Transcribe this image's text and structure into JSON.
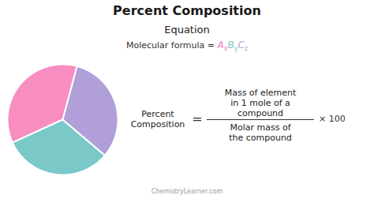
{
  "chart_data": {
    "type": "pie",
    "title": "Percent Composition",
    "values": [
      36,
      32,
      32
    ],
    "colors": [
      "#f78dc0",
      "#7bc8c8",
      "#b09fd8"
    ],
    "annotations": [
      {
        "text": "Equation"
      },
      {
        "text": "Molecular formula = "
      },
      {
        "text": "A",
        "color": "#f47cbe"
      },
      {
        "text": "x",
        "color": "#f47cbe"
      },
      {
        "text": "B",
        "color": "#7bc8c8"
      },
      {
        "text": "y",
        "color": "#7bc8c8"
      },
      {
        "text": "C",
        "color": "#b09fd8"
      },
      {
        "text": "z",
        "color": "#b09fd8"
      },
      {
        "text": "Percent"
      },
      {
        "text": "Composition"
      },
      {
        "text": "="
      },
      {
        "text": "Mass of element"
      },
      {
        "text": "in 1 mole of a"
      },
      {
        "text": "compound"
      },
      {
        "text": "Molar mass of"
      },
      {
        "text": "the compound"
      },
      {
        "text": "× 100"
      },
      {
        "text": "ChemistryLearner.com"
      }
    ]
  }
}
